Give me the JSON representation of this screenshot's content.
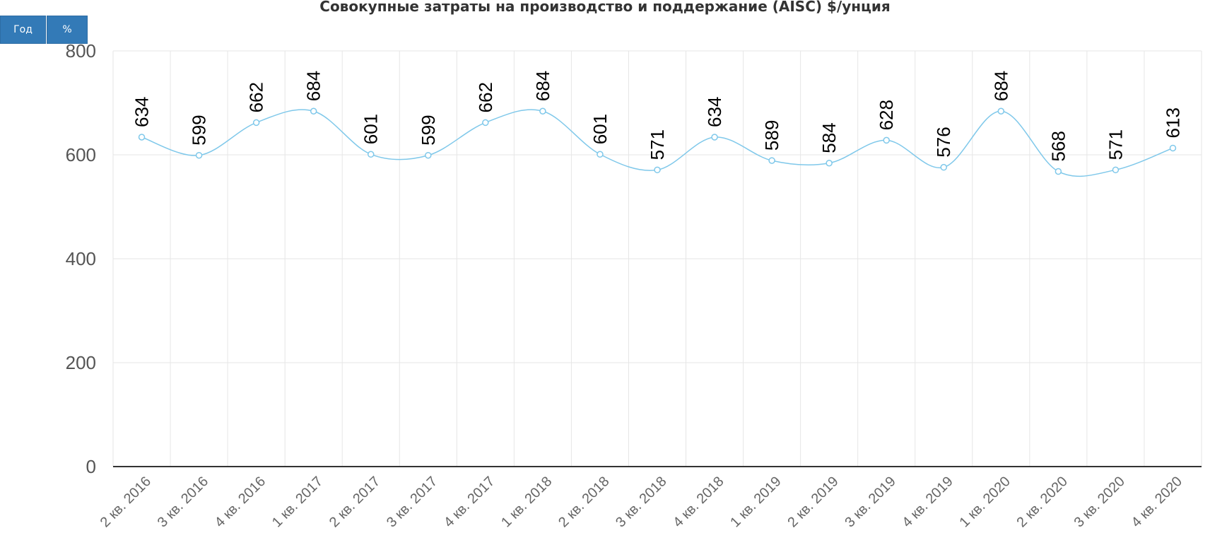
{
  "toolbar": {
    "year_label": "Год",
    "percent_label": "%"
  },
  "colors": {
    "button_bg": "#337ab7",
    "line": "#7fc8ea",
    "grid": "#e6e6e6",
    "axis": "#333333"
  },
  "chart_data": {
    "type": "line",
    "title": "Совокупные затраты на производство и поддержание (AISC) $/унция",
    "xlabel": "",
    "ylabel": "",
    "ylim": [
      0,
      800
    ],
    "yticks": [
      0,
      200,
      400,
      600,
      800
    ],
    "grid": true,
    "smooth": true,
    "categories": [
      "2 кв. 2016",
      "3 кв. 2016",
      "4 кв. 2016",
      "1 кв. 2017",
      "2 кв. 2017",
      "3 кв. 2017",
      "4 кв. 2017",
      "1 кв. 2018",
      "2 кв. 2018",
      "3 кв. 2018",
      "4 кв. 2018",
      "1 кв. 2019",
      "2 кв. 2019",
      "3 кв. 2019",
      "4 кв. 2019",
      "1 кв. 2020",
      "2 кв. 2020",
      "3 кв. 2020",
      "4 кв. 2020"
    ],
    "series": [
      {
        "values": [
          634,
          599,
          662,
          684,
          601,
          599,
          662,
          684,
          601,
          571,
          634,
          589,
          584,
          628,
          576,
          684,
          568,
          571,
          613
        ],
        "data_labels": [
          "634",
          "599",
          "662",
          "684",
          "601",
          "599",
          "662",
          "684",
          "601",
          "571",
          "634",
          "589",
          "584",
          "628",
          "576",
          "684",
          "568",
          "571",
          "613"
        ]
      }
    ]
  }
}
